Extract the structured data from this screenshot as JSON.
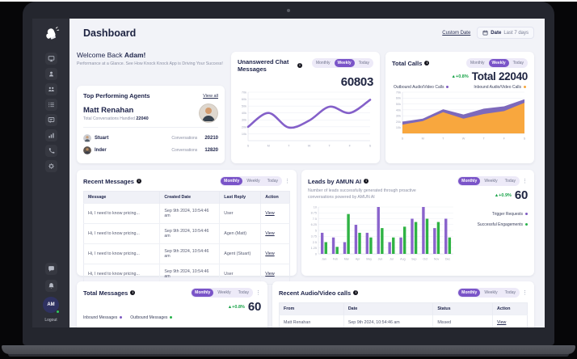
{
  "colors": {
    "accent_purple": "#7a54c8",
    "line_purple": "#8460c9",
    "bar_purple": "#8a63cc",
    "bar_green": "#2fb344",
    "area_orange": "#f8a73e",
    "area_purple": "#7d69bb",
    "delta_green": "#18a348",
    "navy": "#20264c",
    "sidebar_bg": "#2d2f38"
  },
  "icons": {
    "info": "i",
    "kebab": "⋮",
    "arrow_up": "▲",
    "logo": "knock-knock-glove"
  },
  "frame": {
    "avatar_initials": "AM",
    "logout_label": "Logout"
  },
  "sidebar": {
    "items": [
      "dashboard",
      "profile",
      "team",
      "list",
      "chat",
      "analytics",
      "calls",
      "settings",
      "messages",
      "notifications"
    ]
  },
  "header": {
    "title": "Dashboard",
    "custom_date": "Custom Date",
    "date_label": "Date",
    "date_value": "Last 7 days"
  },
  "toggles": {
    "monthly": "Monthly",
    "weekly": "Weekly",
    "today": "Today"
  },
  "welcome": {
    "prefix": "Welcome Back ",
    "name": "Adam!",
    "subtitle": "Performance at a Glance. See How Knock Knock App is Driving Your Success!"
  },
  "agents": {
    "title": "Top Performing Agents",
    "view_all": "View all",
    "top": {
      "name": "Matt Renahan",
      "label": "Total Conversations Handled",
      "value": "22040"
    },
    "rows": [
      {
        "name": "Stuart",
        "label": "Conversations",
        "value": "20210"
      },
      {
        "name": "Inder",
        "label": "Conversations",
        "value": "12820"
      }
    ]
  },
  "unanswered": {
    "title": "Unanswered Chat Messages",
    "value": "60803",
    "selected": "Weekly"
  },
  "total_calls": {
    "title": "Total Calls",
    "delta": "+0.8%",
    "value": "Total 22040",
    "selected": "Weekly",
    "legend": [
      {
        "label": "Outbound Audio/Video Calls",
        "color": "#7e5bc2"
      },
      {
        "label": "Inbound Audio/Video Calls",
        "color": "#f7a63c"
      }
    ]
  },
  "recent_messages": {
    "title": "Recent Messages",
    "selected": "Monthly",
    "columns": [
      "Message",
      "Created Date",
      "Last Reply",
      "Action"
    ],
    "action": "View",
    "rows": [
      {
        "message": "Hi, I need to know pricing...",
        "created": "Sep 9th 2024, 10:54:46 am",
        "last_reply": "User"
      },
      {
        "message": "Hi, I need to know pricing...",
        "created": "Sep 9th 2024, 10:54:46 am",
        "last_reply": "Agen (Matt)"
      },
      {
        "message": "Hi, I need to know pricing...",
        "created": "Sep 9th 2024, 10:54:46 am",
        "last_reply": "Agent (Stuart)"
      },
      {
        "message": "Hi, I need to know pricing...",
        "created": "Sep 9th 2024, 10:54:46 am",
        "last_reply": "User"
      }
    ]
  },
  "leads": {
    "title": "Leads by AMUN AI",
    "selected": "Monthly",
    "subtitle": "Number of leads successfully generated through proactive conversations powered by AMUN AI",
    "delta": "+0.9%",
    "value": "60",
    "legend": [
      {
        "label": "Trigger Requests",
        "color": "#7e5bc2"
      },
      {
        "label": "Successful Engagements",
        "color": "#27b24a"
      }
    ]
  },
  "total_messages": {
    "title": "Total Messages",
    "selected": "Monthly",
    "delta": "+0.8%",
    "value": "60",
    "legend": [
      {
        "label": "Inbound Messages",
        "color": "#7e5bc2"
      },
      {
        "label": "Outbound Messages",
        "color": "#27b24a"
      }
    ]
  },
  "recent_calls": {
    "title": "Recent Audio/Video calls",
    "selected": "Monthly",
    "columns": [
      "From",
      "Date",
      "Status",
      "Action"
    ],
    "action": "View",
    "rows": [
      {
        "from": "Matt Renahan",
        "date": "Sep 9th 2024, 10:54:46 am",
        "status": "Missed"
      }
    ]
  },
  "chart_data": [
    {
      "type": "line",
      "title": "Unanswered Chat Messages",
      "legend_position": "none",
      "grid": true,
      "x": [
        "S",
        "M",
        "T",
        "W",
        "T",
        "F",
        "S"
      ],
      "series": [
        {
          "name": "Unanswered Chat Messages",
          "values": [
            20000,
            40000,
            19000,
            29000,
            49000,
            40000,
            59000
          ],
          "color": "#8460c9"
        }
      ],
      "ylim": [
        0,
        70000
      ],
      "yticks": [
        10000,
        20000,
        30000,
        40000,
        50000,
        60000,
        70000
      ],
      "ytick_labels": [
        "10k",
        "20k",
        "30k",
        "40k",
        "50k",
        "60k",
        "70k"
      ],
      "xlabel": "",
      "ylabel": ""
    },
    {
      "type": "area",
      "title": "Total Calls",
      "legend_position": "top",
      "grid": true,
      "x": [
        "S",
        "M",
        "T",
        "W",
        "T",
        "F",
        "S"
      ],
      "series": [
        {
          "name": "Outbound Audio/Video Calls",
          "values": [
            20000,
            25000,
            41000,
            32000,
            42000,
            46000,
            58000
          ],
          "color": "#7d69bb"
        },
        {
          "name": "Inbound Audio/Video Calls",
          "values": [
            15000,
            21000,
            36000,
            25000,
            33000,
            38000,
            52000
          ],
          "color": "#f8a73e"
        }
      ],
      "ylim": [
        0,
        70000
      ],
      "yticks": [
        10000,
        20000,
        30000,
        40000,
        50000,
        60000,
        70000
      ],
      "ytick_labels": [
        "10k",
        "20k",
        "30k",
        "40k",
        "50k",
        "60k",
        "70k"
      ],
      "xlabel": "",
      "ylabel": ""
    },
    {
      "type": "bar",
      "title": "Leads by AMUN AI",
      "legend_position": "right",
      "grid": true,
      "categories": [
        "Jan",
        "Feb",
        "Mar",
        "Apr",
        "May",
        "Jun",
        "Jul",
        "Aug",
        "Sep",
        "Oct",
        "Nov",
        "Dec"
      ],
      "series": [
        {
          "name": "Trigger Requests",
          "values": [
            4.5,
            3.5,
            2.5,
            6.2,
            4.5,
            10,
            2.5,
            3.5,
            7.5,
            10,
            5.5,
            7.5
          ],
          "color": "#8a63cc"
        },
        {
          "name": "Successful Engagements",
          "values": [
            2.5,
            1.5,
            8.5,
            4.5,
            3.5,
            5.5,
            3.5,
            5.8,
            6.8,
            7.5,
            6.8,
            3.5
          ],
          "color": "#2fb344"
        }
      ],
      "ylim": [
        0,
        10
      ],
      "yticks": [
        0,
        1.25,
        2.5,
        3.75,
        5,
        6.25,
        7.5,
        8.75,
        10
      ],
      "ytick_labels": [
        "0",
        "1.25",
        "2.5",
        "3.75",
        "5",
        "6.25",
        "7.5",
        "8.75",
        "10"
      ],
      "xlabel": "",
      "ylabel": ""
    }
  ]
}
